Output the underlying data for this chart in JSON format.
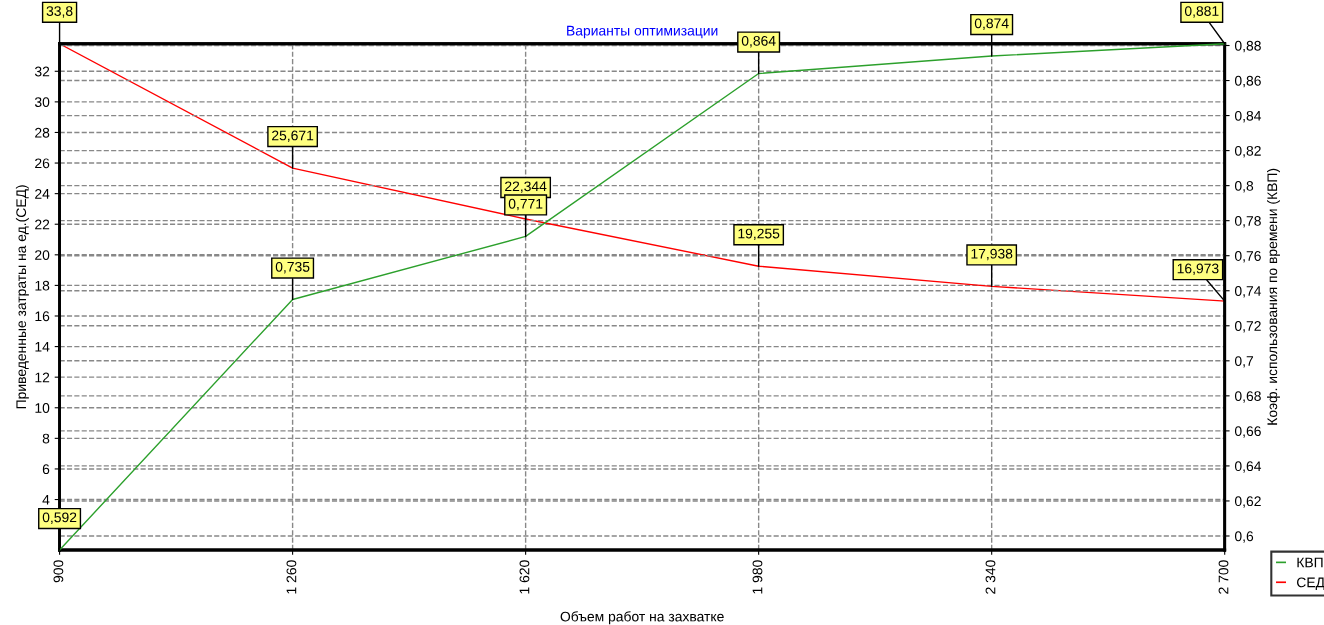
{
  "chart_data": {
    "type": "line",
    "title": "Варианты оптимизации",
    "xlabel": "Объем работ на захватке",
    "ylabel": "Приведенные затраты на ед.(СЕД)",
    "y2label": "Коэф. использования по времени (КВП)",
    "x": [
      900,
      1260,
      1620,
      1980,
      2340,
      2700
    ],
    "series": [
      {
        "name": "КВП",
        "color": "#2ca02c",
        "axis": "y2",
        "values": [
          0.592,
          0.735,
          0.771,
          0.864,
          0.874,
          0.881
        ],
        "value_labels": [
          "0,592",
          "0,735",
          "0,771",
          "0,864",
          "0,874",
          "0,881"
        ]
      },
      {
        "name": "СЕД",
        "color": "#ff0000",
        "values": [
          33.8,
          25.671,
          22.344,
          19.255,
          17.938,
          16.973
        ],
        "value_labels": [
          "33,8",
          "25,671",
          "22,344",
          "19,255",
          "17,938",
          "16,973"
        ]
      }
    ],
    "xlim": [
      900,
      2700
    ],
    "xticks": [
      {
        "value": 900,
        "label": "900"
      },
      {
        "value": 1260,
        "label": "1 260"
      },
      {
        "value": 1620,
        "label": "1 620"
      },
      {
        "value": 1980,
        "label": "1 980"
      },
      {
        "value": 2340,
        "label": "2 340"
      },
      {
        "value": 2700,
        "label": "2 700"
      }
    ],
    "ylim": [
      0.7,
      33.8
    ],
    "yticks": [
      4,
      6,
      8,
      10,
      12,
      14,
      16,
      18,
      20,
      22,
      24,
      26,
      28,
      30,
      32
    ],
    "y2lim": [
      0.592,
      0.881
    ],
    "y2ticks": [
      {
        "value": 0.6,
        "label": "0,6"
      },
      {
        "value": 0.62,
        "label": "0,62"
      },
      {
        "value": 0.64,
        "label": "0,64"
      },
      {
        "value": 0.66,
        "label": "0,66"
      },
      {
        "value": 0.68,
        "label": "0,68"
      },
      {
        "value": 0.7,
        "label": "0,7"
      },
      {
        "value": 0.72,
        "label": "0,72"
      },
      {
        "value": 0.74,
        "label": "0,74"
      },
      {
        "value": 0.76,
        "label": "0,76"
      },
      {
        "value": 0.78,
        "label": "0,78"
      },
      {
        "value": 0.8,
        "label": "0,8"
      },
      {
        "value": 0.82,
        "label": "0,82"
      },
      {
        "value": 0.84,
        "label": "0,84"
      },
      {
        "value": 0.86,
        "label": "0,86"
      },
      {
        "value": 0.88,
        "label": "0,88"
      }
    ],
    "grid": true,
    "legend": "bottom right",
    "marker": "none",
    "line_style": "solid"
  }
}
